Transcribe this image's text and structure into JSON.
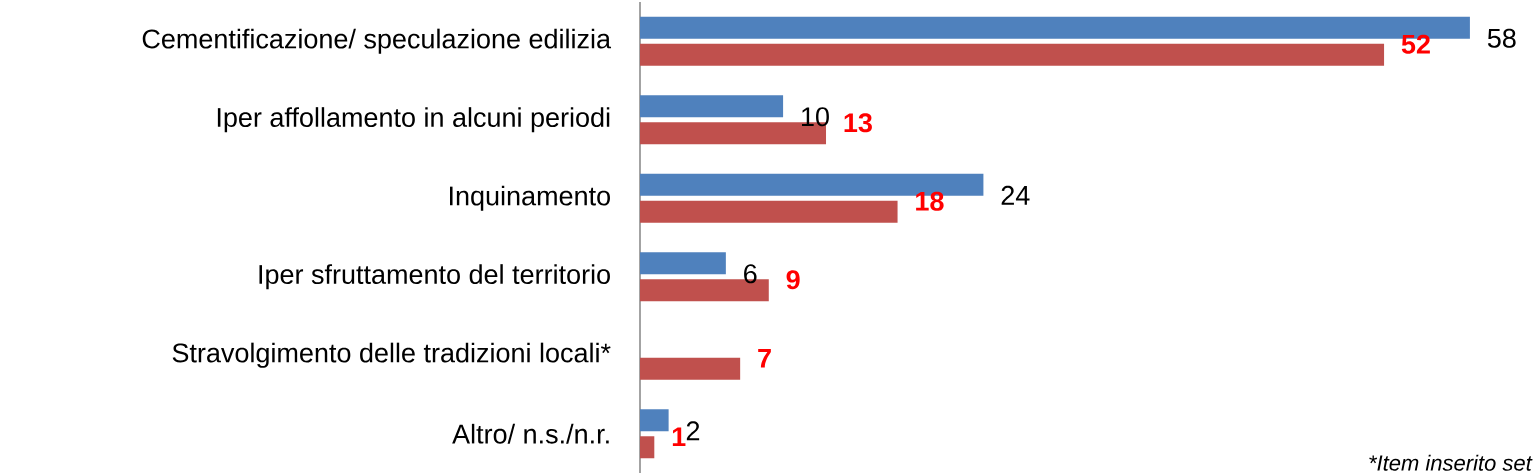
{
  "chart_data": {
    "type": "bar",
    "orientation": "horizontal",
    "categories": [
      "Cementificazione/ speculazione edilizia",
      "Iper affollamento in alcuni periodi",
      "Inquinamento",
      "Iper sfruttamento del territorio",
      "Stravolgimento delle tradizioni locali*",
      "Altro/ n.s./n.r."
    ],
    "series": [
      {
        "color": "#4f81bd",
        "values": [
          58,
          10,
          24,
          6,
          null,
          2
        ]
      },
      {
        "color": "#c0504d",
        "values": [
          52,
          13,
          18,
          9,
          7,
          1
        ]
      }
    ],
    "data_labels": true,
    "tick_labels": "y",
    "annotations": [
      "*Item inserito set"
    ]
  }
}
